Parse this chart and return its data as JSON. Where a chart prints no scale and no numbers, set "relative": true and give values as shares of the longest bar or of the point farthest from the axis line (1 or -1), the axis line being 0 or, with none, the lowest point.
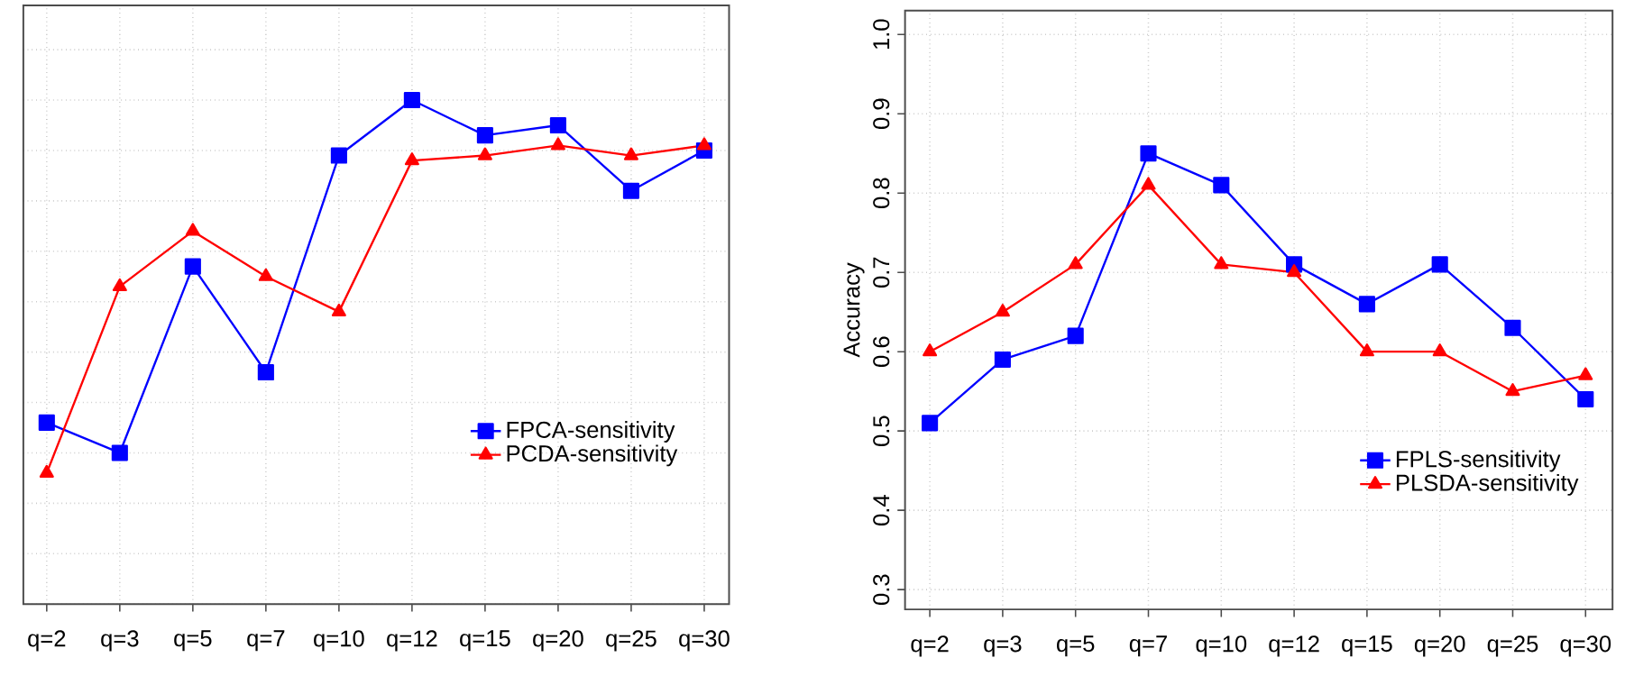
{
  "chart_data": [
    {
      "type": "line",
      "relative": true,
      "grid": true,
      "legend": "bottom right",
      "categories": [
        "q=2",
        "q=3",
        "q=5",
        "q=7",
        "q=10",
        "q=12",
        "q=15",
        "q=20",
        "q=25",
        "q=30"
      ],
      "series": [
        {
          "name": "FPCA-sensitivity",
          "color": "#0000ff",
          "marker": "square",
          "values": [
            0.36,
            0.3,
            0.67,
            0.46,
            0.89,
            1,
            0.93,
            0.95,
            0.82,
            0.9
          ]
        },
        {
          "name": "PCDA-sensitivity",
          "color": "#ff0000",
          "marker": "triangle",
          "values": [
            0.26,
            0.63,
            0.74,
            0.65,
            0.58,
            0.88,
            0.89,
            0.91,
            0.89,
            0.91
          ]
        }
      ]
    },
    {
      "type": "line",
      "ylabel": "Accuracy",
      "grid": true,
      "legend": "bottom right",
      "ylim": [
        0.275,
        1.03
      ],
      "yticks": [
        0.3,
        0.4,
        0.5,
        0.6,
        0.7,
        0.8,
        0.9,
        {
          "value": 1,
          "label": "1.0"
        }
      ],
      "categories": [
        "q=2",
        "q=3",
        "q=5",
        "q=7",
        "q=10",
        "q=12",
        "q=15",
        "q=20",
        "q=25",
        "q=30"
      ],
      "series": [
        {
          "name": "FPLS-sensitivity",
          "color": "#0000ff",
          "marker": "square",
          "values": [
            0.51,
            0.59,
            0.62,
            0.85,
            0.81,
            0.71,
            0.66,
            0.71,
            0.63,
            0.54
          ]
        },
        {
          "name": "PLSDA-sensitivity",
          "color": "#ff0000",
          "marker": "triangle",
          "values": [
            0.6,
            0.65,
            0.71,
            0.81,
            0.71,
            0.7,
            0.6,
            0.6,
            0.55,
            0.57
          ]
        }
      ]
    }
  ]
}
